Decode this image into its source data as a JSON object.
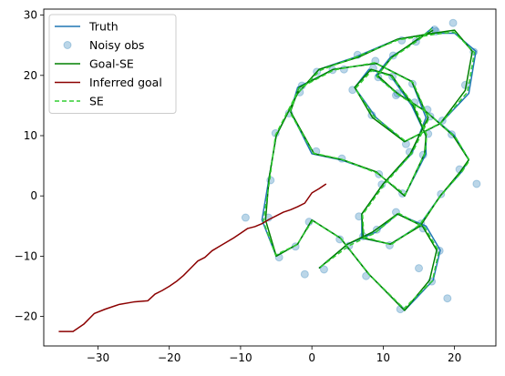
{
  "chart_data": {
    "type": "line",
    "title": "",
    "xlabel": "",
    "ylabel": "",
    "xlim": [
      -37.6,
      25.8
    ],
    "ylim": [
      -24.9,
      31.0
    ],
    "x_ticks": [
      -30,
      -20,
      -10,
      0,
      10,
      20
    ],
    "y_ticks": [
      -20,
      -10,
      0,
      10,
      20,
      30
    ],
    "x_tick_labels": [
      "−30",
      "−20",
      "−10",
      "0",
      "10",
      "20"
    ],
    "y_tick_labels": [
      "−20",
      "−10",
      "0",
      "10",
      "20",
      "30"
    ],
    "grid": false,
    "legend_position": "upper-left",
    "series": [
      {
        "name": "Truth",
        "kind": "line",
        "color": "#1f77b4",
        "x": [
          1,
          5,
          9,
          12,
          16,
          18,
          17,
          13,
          8,
          4,
          0,
          -2,
          -5,
          -7,
          -6,
          -5,
          -2,
          1,
          6,
          12,
          17,
          20,
          23,
          22,
          18,
          13,
          9,
          6,
          8,
          11,
          14,
          16,
          16,
          13,
          9,
          4,
          0,
          -3,
          -2,
          3,
          9,
          14,
          16,
          14,
          10,
          7,
          7,
          11,
          15,
          18,
          21,
          22,
          20,
          16,
          12,
          9,
          11,
          15,
          17
        ],
        "y": [
          -12,
          -8,
          -6,
          -3,
          -5,
          -9,
          -14,
          -19,
          -13,
          -7,
          -4,
          -8,
          -10,
          -4,
          3,
          10,
          17,
          21,
          23,
          26,
          27,
          27,
          24,
          17,
          12,
          9,
          13,
          18,
          21,
          20,
          15,
          10,
          7,
          0,
          4,
          6,
          7,
          14,
          18,
          21,
          22,
          19,
          13,
          7,
          2,
          -3,
          -7,
          -8,
          -5,
          0,
          4,
          6,
          10,
          14,
          17,
          20,
          23,
          26,
          28
        ]
      },
      {
        "name": "Noisy obs",
        "kind": "scatter",
        "color": "#1f77b4",
        "x": [
          1.7,
          5.2,
          9.1,
          11.8,
          15.6,
          17.9,
          16.8,
          12.4,
          7.6,
          3.9,
          -0.4,
          -2.3,
          -4.6,
          -6.1,
          -5.8,
          -5.1,
          -1.7,
          0.7,
          6.4,
          12.6,
          17.4,
          19.8,
          22.7,
          21.5,
          18.3,
          13.2,
          8.4,
          5.7,
          8.6,
          11.3,
          14.4,
          16.3,
          15.6,
          12.7,
          9.4,
          4.2,
          0.6,
          -3.2,
          -1.4,
          2.9,
          8.9,
          14.1,
          16.6,
          13.7,
          9.8,
          6.6,
          7.2,
          10.9,
          15.3,
          18.1,
          20.7,
          23.1,
          19.6,
          16.2,
          11.8,
          9.3,
          11.4,
          14.6,
          17.2,
          -1,
          -9.3,
          4.5,
          12,
          15,
          19
        ],
        "y": [
          -12.2,
          -8.3,
          -5.6,
          -2.7,
          -5.4,
          -9.1,
          -14.2,
          -18.8,
          -13.3,
          -7.2,
          -4.3,
          -8.4,
          -10.2,
          -3.6,
          2.6,
          10.4,
          17.2,
          20.6,
          23.4,
          25.8,
          27.3,
          28.7,
          23.9,
          18.4,
          12.5,
          8.6,
          13.4,
          17.6,
          21.2,
          19.8,
          15.5,
          10.3,
          6.8,
          0.4,
          3.6,
          6.2,
          7.4,
          13.7,
          18.3,
          20.9,
          22.4,
          18.6,
          13.2,
          7.3,
          1.9,
          -3.4,
          -6.7,
          -8.2,
          -4.6,
          0.3,
          4.4,
          2.0,
          10.2,
          14.3,
          16.7,
          19.7,
          23.3,
          25.6,
          27.6,
          -13,
          -3.6,
          21,
          17,
          -12,
          -17
        ]
      },
      {
        "name": "Goal-SE",
        "kind": "line",
        "color": "#008000",
        "x": [
          1,
          5,
          8.5,
          12,
          15.5,
          17.5,
          16.5,
          13,
          8,
          4,
          0,
          -2,
          -5,
          -6.5,
          -6,
          -5,
          -2,
          1,
          6.5,
          12,
          17,
          20,
          22.5,
          21.5,
          18,
          13,
          8.5,
          6,
          8.3,
          11.2,
          14.2,
          16,
          15.8,
          13,
          9,
          4.3,
          0.3,
          -3,
          -1.8,
          3,
          9,
          14,
          16.3,
          13.8,
          10,
          7,
          7.2,
          11,
          15.2,
          18,
          20.8,
          22,
          19.8,
          16,
          12,
          9.2,
          11.2,
          14.8,
          17
        ],
        "y": [
          -12,
          -8,
          -6,
          -3,
          -5,
          -9,
          -14,
          -19,
          -13,
          -7,
          -4,
          -8,
          -10,
          -4,
          3,
          10,
          17,
          21,
          23,
          26,
          27,
          27.5,
          24,
          17.5,
          12,
          9,
          13,
          18,
          21,
          20,
          15,
          10,
          7,
          0,
          4,
          6,
          7,
          14,
          18,
          21,
          22,
          19,
          13,
          7,
          2,
          -3,
          -7,
          -8,
          -5,
          0,
          4,
          6,
          10,
          14,
          17,
          20,
          23,
          26,
          27.5
        ]
      },
      {
        "name": "Inferred goal",
        "kind": "line",
        "color": "#8b0000",
        "x": [
          -35.5,
          -33.5,
          -32,
          -30.5,
          -29,
          -27,
          -25,
          -23,
          -22,
          -21,
          -20,
          -19,
          -18,
          -17,
          -16,
          -15,
          -14,
          -13,
          -12,
          -11,
          -10,
          -9,
          -8,
          -7,
          -6,
          -5,
          -4,
          -3,
          -2,
          -1,
          0,
          1,
          2
        ],
        "y": [
          -22.5,
          -22.5,
          -21.3,
          -19.5,
          -18.8,
          -18,
          -17.6,
          -17.4,
          -16.3,
          -15.7,
          -15,
          -14.2,
          -13.2,
          -12,
          -10.8,
          -10.2,
          -9.1,
          -8.4,
          -7.7,
          -7,
          -6.2,
          -5.4,
          -5.1,
          -4.6,
          -3.9,
          -3.3,
          -2.7,
          -2.3,
          -1.8,
          -1.2,
          0.5,
          1.2,
          2
        ]
      },
      {
        "name": "SE",
        "kind": "dashed-line",
        "color": "#32cd32",
        "x": [
          1.2,
          5.3,
          8.8,
          12.2,
          15.8,
          17.8,
          16.9,
          12.9,
          8.1,
          4.1,
          0.1,
          -2.1,
          -5.1,
          -6.8,
          -5.9,
          -5.1,
          -2.2,
          1.1,
          6.3,
          12.1,
          17.2,
          19.9,
          22.8,
          21.8,
          18.2,
          13.1,
          8.7,
          6.1,
          8.4,
          11.1,
          14.3,
          16.1,
          15.9,
          13.1,
          9.1,
          4.1,
          0.2,
          -3.1,
          -1.9,
          3.1,
          8.8,
          14.2,
          16.4,
          14.1,
          10.1,
          7.1,
          7.3,
          11.1,
          15.1,
          18.2,
          21.1,
          22.1,
          20.1,
          16.2,
          12.1,
          9.1,
          11.1,
          14.9,
          16.8
        ],
        "y": [
          -11.8,
          -8.2,
          -6.2,
          -2.9,
          -5.2,
          -9.2,
          -14.1,
          -18.7,
          -13.1,
          -7.1,
          -4.1,
          -8.1,
          -9.8,
          -4.2,
          2.8,
          10.1,
          16.8,
          20.8,
          23.1,
          25.9,
          26.8,
          27.2,
          23.8,
          17.2,
          12.2,
          9.1,
          13.2,
          17.8,
          20.8,
          19.9,
          15.2,
          10.1,
          7.2,
          0.2,
          3.8,
          6.1,
          7.1,
          13.9,
          17.8,
          20.9,
          22.1,
          18.8,
          12.8,
          7.2,
          1.8,
          -3.1,
          -6.8,
          -8.1,
          -4.8,
          0.2,
          4.1,
          5.9,
          9.8,
          13.8,
          16.8,
          19.8,
          22.8,
          25.8,
          27.8
        ]
      }
    ]
  }
}
